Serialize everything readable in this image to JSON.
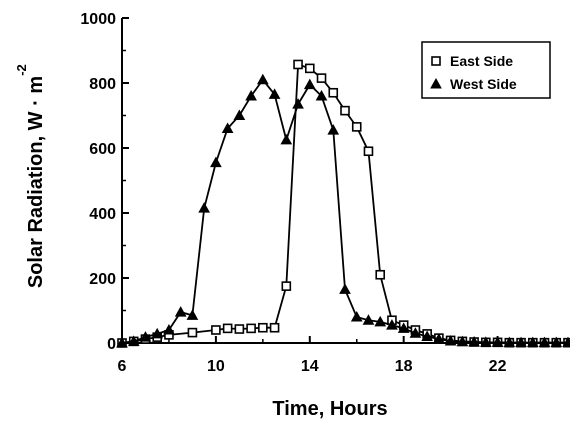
{
  "chart_data": {
    "type": "line",
    "xlabel": "Time, Hours",
    "ylabel_main": "Solar Radiation, W · m",
    "ylabel_exponent": "-2",
    "xlim": [
      6,
      25
    ],
    "ylim": [
      0,
      1000
    ],
    "xticks": [
      6,
      10,
      14,
      18,
      22
    ],
    "yticks": [
      0,
      200,
      400,
      600,
      800,
      1000
    ],
    "grid": false,
    "legend_position": "top-right",
    "series": [
      {
        "name": "East Side",
        "marker": "open-square",
        "x": [
          6.0,
          6.5,
          7.0,
          7.5,
          8.0,
          9.0,
          10.0,
          10.5,
          11.0,
          11.5,
          12.0,
          12.5,
          13.0,
          13.5,
          14.0,
          14.5,
          15.0,
          15.5,
          16.0,
          16.5,
          17.0,
          17.5,
          18.0,
          18.5,
          19.0,
          19.5,
          20.0,
          20.5,
          21.0,
          21.5,
          22.0,
          22.5,
          23.0,
          23.5,
          24.0,
          24.5,
          25.0
        ],
        "y": [
          0,
          5,
          12,
          18,
          25,
          32,
          40,
          45,
          43,
          45,
          47,
          47,
          175,
          857,
          845,
          815,
          770,
          715,
          665,
          590,
          210,
          70,
          55,
          40,
          28,
          15,
          8,
          5,
          3,
          2,
          2,
          1,
          1,
          1,
          1,
          1,
          1
        ]
      },
      {
        "name": "West Side",
        "marker": "filled-triangle",
        "x": [
          6.0,
          6.5,
          7.0,
          7.5,
          8.0,
          8.5,
          9.0,
          9.5,
          10.0,
          10.5,
          11.0,
          11.5,
          12.0,
          12.5,
          13.0,
          13.5,
          14.0,
          14.5,
          15.0,
          15.5,
          16.0,
          16.5,
          17.0,
          17.5,
          18.0,
          18.5,
          19.0,
          19.5,
          20.0,
          20.5,
          21.0,
          21.5,
          22.0,
          22.5,
          23.0,
          23.5,
          24.0,
          24.5,
          25.0
        ],
        "y": [
          0,
          5,
          18,
          28,
          40,
          95,
          85,
          415,
          555,
          660,
          700,
          760,
          810,
          765,
          625,
          735,
          795,
          760,
          655,
          165,
          80,
          70,
          65,
          55,
          45,
          30,
          20,
          12,
          6,
          4,
          3,
          2,
          2,
          1,
          1,
          1,
          1,
          1,
          1
        ]
      }
    ]
  }
}
